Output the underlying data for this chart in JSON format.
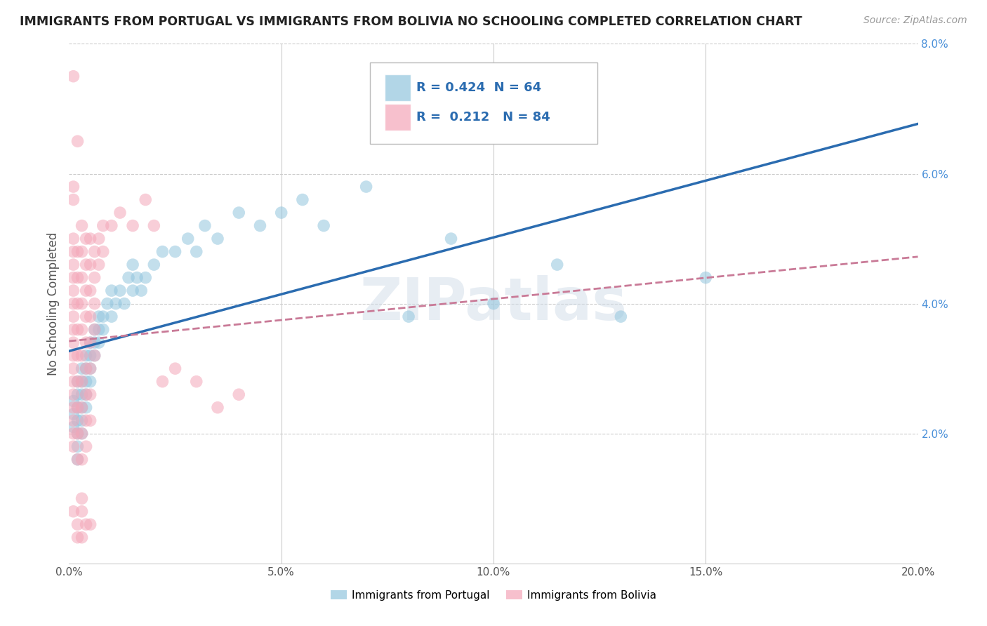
{
  "title": "IMMIGRANTS FROM PORTUGAL VS IMMIGRANTS FROM BOLIVIA NO SCHOOLING COMPLETED CORRELATION CHART",
  "source": "Source: ZipAtlas.com",
  "ylabel": "No Schooling Completed",
  "xlim": [
    0.0,
    0.2
  ],
  "ylim": [
    0.0,
    0.08
  ],
  "xticks": [
    0.0,
    0.05,
    0.1,
    0.15,
    0.2
  ],
  "xticklabels": [
    "0.0%",
    "5.0%",
    "10.0%",
    "15.0%",
    "20.0%"
  ],
  "yticks_right": [
    0.02,
    0.04,
    0.06,
    0.08
  ],
  "yticklabels_right": [
    "2.0%",
    "4.0%",
    "6.0%",
    "8.0%"
  ],
  "portugal_R": 0.424,
  "portugal_N": 64,
  "bolivia_R": 0.212,
  "bolivia_N": 84,
  "portugal_color": "#92c5de",
  "bolivia_color": "#f4a6b8",
  "portugal_line_color": "#2b6cb0",
  "bolivia_line_color": "#c97a97",
  "watermark": "ZIPatlas",
  "legend_labels": [
    "Immigrants from Portugal",
    "Immigrants from Bolivia"
  ],
  "portugal_scatter": [
    [
      0.001,
      0.025
    ],
    [
      0.001,
      0.023
    ],
    [
      0.001,
      0.021
    ],
    [
      0.002,
      0.028
    ],
    [
      0.002,
      0.026
    ],
    [
      0.002,
      0.024
    ],
    [
      0.002,
      0.022
    ],
    [
      0.002,
      0.02
    ],
    [
      0.002,
      0.018
    ],
    [
      0.002,
      0.016
    ],
    [
      0.003,
      0.03
    ],
    [
      0.003,
      0.028
    ],
    [
      0.003,
      0.026
    ],
    [
      0.003,
      0.024
    ],
    [
      0.003,
      0.022
    ],
    [
      0.003,
      0.02
    ],
    [
      0.004,
      0.032
    ],
    [
      0.004,
      0.03
    ],
    [
      0.004,
      0.028
    ],
    [
      0.004,
      0.026
    ],
    [
      0.004,
      0.024
    ],
    [
      0.005,
      0.034
    ],
    [
      0.005,
      0.032
    ],
    [
      0.005,
      0.03
    ],
    [
      0.005,
      0.028
    ],
    [
      0.006,
      0.036
    ],
    [
      0.006,
      0.034
    ],
    [
      0.006,
      0.032
    ],
    [
      0.007,
      0.038
    ],
    [
      0.007,
      0.036
    ],
    [
      0.007,
      0.034
    ],
    [
      0.008,
      0.038
    ],
    [
      0.008,
      0.036
    ],
    [
      0.009,
      0.04
    ],
    [
      0.01,
      0.042
    ],
    [
      0.01,
      0.038
    ],
    [
      0.011,
      0.04
    ],
    [
      0.012,
      0.042
    ],
    [
      0.013,
      0.04
    ],
    [
      0.014,
      0.044
    ],
    [
      0.015,
      0.046
    ],
    [
      0.015,
      0.042
    ],
    [
      0.016,
      0.044
    ],
    [
      0.017,
      0.042
    ],
    [
      0.018,
      0.044
    ],
    [
      0.02,
      0.046
    ],
    [
      0.022,
      0.048
    ],
    [
      0.025,
      0.048
    ],
    [
      0.028,
      0.05
    ],
    [
      0.03,
      0.048
    ],
    [
      0.032,
      0.052
    ],
    [
      0.035,
      0.05
    ],
    [
      0.04,
      0.054
    ],
    [
      0.045,
      0.052
    ],
    [
      0.05,
      0.054
    ],
    [
      0.055,
      0.056
    ],
    [
      0.06,
      0.052
    ],
    [
      0.07,
      0.058
    ],
    [
      0.08,
      0.038
    ],
    [
      0.09,
      0.05
    ],
    [
      0.1,
      0.04
    ],
    [
      0.115,
      0.046
    ],
    [
      0.13,
      0.038
    ],
    [
      0.15,
      0.044
    ]
  ],
  "bolivia_scatter": [
    [
      0.001,
      0.075
    ],
    [
      0.001,
      0.058
    ],
    [
      0.001,
      0.056
    ],
    [
      0.001,
      0.05
    ],
    [
      0.001,
      0.048
    ],
    [
      0.001,
      0.046
    ],
    [
      0.001,
      0.044
    ],
    [
      0.001,
      0.042
    ],
    [
      0.001,
      0.04
    ],
    [
      0.001,
      0.038
    ],
    [
      0.001,
      0.036
    ],
    [
      0.001,
      0.034
    ],
    [
      0.001,
      0.032
    ],
    [
      0.001,
      0.03
    ],
    [
      0.001,
      0.028
    ],
    [
      0.001,
      0.026
    ],
    [
      0.001,
      0.024
    ],
    [
      0.001,
      0.022
    ],
    [
      0.001,
      0.02
    ],
    [
      0.001,
      0.018
    ],
    [
      0.002,
      0.065
    ],
    [
      0.002,
      0.048
    ],
    [
      0.002,
      0.044
    ],
    [
      0.002,
      0.04
    ],
    [
      0.002,
      0.036
    ],
    [
      0.002,
      0.032
    ],
    [
      0.002,
      0.028
    ],
    [
      0.002,
      0.024
    ],
    [
      0.002,
      0.02
    ],
    [
      0.002,
      0.016
    ],
    [
      0.003,
      0.052
    ],
    [
      0.003,
      0.048
    ],
    [
      0.003,
      0.044
    ],
    [
      0.003,
      0.04
    ],
    [
      0.003,
      0.036
    ],
    [
      0.003,
      0.032
    ],
    [
      0.003,
      0.028
    ],
    [
      0.003,
      0.024
    ],
    [
      0.003,
      0.02
    ],
    [
      0.003,
      0.016
    ],
    [
      0.003,
      0.01
    ],
    [
      0.004,
      0.05
    ],
    [
      0.004,
      0.046
    ],
    [
      0.004,
      0.042
    ],
    [
      0.004,
      0.038
    ],
    [
      0.004,
      0.034
    ],
    [
      0.004,
      0.03
    ],
    [
      0.004,
      0.026
    ],
    [
      0.004,
      0.022
    ],
    [
      0.004,
      0.018
    ],
    [
      0.005,
      0.05
    ],
    [
      0.005,
      0.046
    ],
    [
      0.005,
      0.042
    ],
    [
      0.005,
      0.038
    ],
    [
      0.005,
      0.034
    ],
    [
      0.005,
      0.03
    ],
    [
      0.005,
      0.026
    ],
    [
      0.005,
      0.022
    ],
    [
      0.006,
      0.048
    ],
    [
      0.006,
      0.044
    ],
    [
      0.006,
      0.04
    ],
    [
      0.006,
      0.036
    ],
    [
      0.006,
      0.032
    ],
    [
      0.007,
      0.05
    ],
    [
      0.007,
      0.046
    ],
    [
      0.008,
      0.052
    ],
    [
      0.008,
      0.048
    ],
    [
      0.01,
      0.052
    ],
    [
      0.012,
      0.054
    ],
    [
      0.015,
      0.052
    ],
    [
      0.018,
      0.056
    ],
    [
      0.02,
      0.052
    ],
    [
      0.022,
      0.028
    ],
    [
      0.025,
      0.03
    ],
    [
      0.03,
      0.028
    ],
    [
      0.035,
      0.024
    ],
    [
      0.04,
      0.026
    ],
    [
      0.001,
      0.008
    ],
    [
      0.002,
      0.006
    ],
    [
      0.003,
      0.004
    ],
    [
      0.002,
      0.004
    ],
    [
      0.003,
      0.008
    ],
    [
      0.004,
      0.006
    ],
    [
      0.005,
      0.006
    ]
  ]
}
